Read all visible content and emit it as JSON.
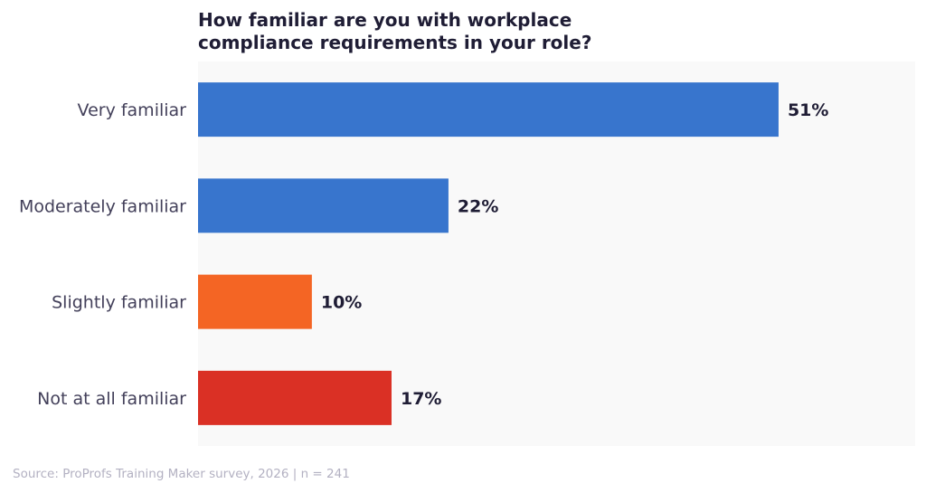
{
  "chart_data": {
    "type": "bar",
    "orientation": "horizontal",
    "title": "How familiar are you with workplace\ncompliance requirements in your role?",
    "categories": [
      "Very familiar",
      "Moderately familiar",
      "Slightly familiar",
      "Not at all familiar"
    ],
    "values": [
      51,
      22,
      10,
      17
    ],
    "data_labels": [
      "51%",
      "22%",
      "10%",
      "17%"
    ],
    "colors": [
      "#3875cd",
      "#3875cd",
      "#f46524",
      "#da3025"
    ],
    "xlim": [
      0,
      63
    ],
    "xlabel": "",
    "ylabel": "",
    "grid": false,
    "plot_background": "#f9f9f9"
  },
  "source": "Source: ProProfs Training Maker survey, 2026  |  n = 241"
}
